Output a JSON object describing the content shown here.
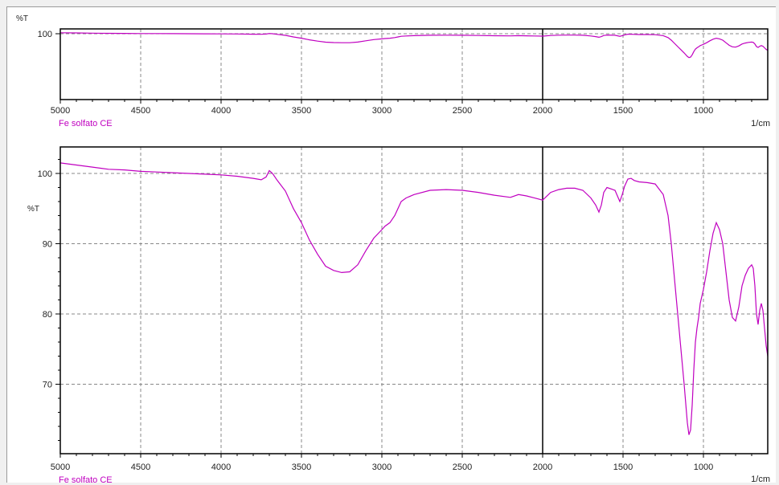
{
  "panels": [
    {
      "id": "top",
      "ylabel": "%T",
      "y_ticks": [
        100
      ],
      "x_ticks": [
        5000,
        4500,
        4000,
        3500,
        3000,
        2500,
        2000,
        1500,
        1000
      ],
      "sample_label": "Fe solfato CE",
      "x_unit": "1/cm"
    },
    {
      "id": "bottom",
      "ylabel": "%T",
      "y_ticks": [
        100,
        90,
        80,
        70
      ],
      "x_ticks": [
        5000,
        4500,
        4000,
        3500,
        3000,
        2500,
        2000,
        1500,
        1000
      ],
      "sample_label": "Fe solfato CE",
      "x_unit": "1/cm"
    }
  ],
  "chart_data": {
    "type": "line",
    "title": "",
    "xlabel": "1/cm",
    "ylabel": "%T",
    "x_reversed": true,
    "xlim": [
      5000,
      600
    ],
    "ylim": [
      61,
      104
    ],
    "grid": true,
    "colors": {
      "spectrum": "#c000c0",
      "marker_line": "#000000",
      "grid": "#888888"
    },
    "marker_x": 2000,
    "series": [
      {
        "name": "Fe solfato CE",
        "x": [
          5000,
          4900,
          4800,
          4700,
          4600,
          4500,
          4400,
          4300,
          4200,
          4100,
          4000,
          3900,
          3800,
          3750,
          3720,
          3700,
          3680,
          3650,
          3600,
          3550,
          3500,
          3450,
          3400,
          3350,
          3300,
          3250,
          3200,
          3150,
          3100,
          3050,
          3000,
          2980,
          2950,
          2920,
          2900,
          2880,
          2850,
          2800,
          2700,
          2600,
          2500,
          2400,
          2300,
          2200,
          2150,
          2100,
          2050,
          2000,
          1950,
          1900,
          1850,
          1800,
          1750,
          1700,
          1670,
          1650,
          1635,
          1620,
          1600,
          1550,
          1520,
          1505,
          1490,
          1470,
          1450,
          1430,
          1400,
          1350,
          1300,
          1250,
          1220,
          1200,
          1180,
          1160,
          1140,
          1120,
          1100,
          1090,
          1080,
          1070,
          1060,
          1050,
          1040,
          1030,
          1020,
          1010,
          1000,
          980,
          960,
          940,
          920,
          900,
          880,
          860,
          840,
          820,
          800,
          780,
          760,
          740,
          720,
          700,
          690,
          680,
          670,
          660,
          650,
          640,
          630,
          620,
          610,
          600
        ],
        "y": [
          101.5,
          101.2,
          100.9,
          100.6,
          100.5,
          100.3,
          100.2,
          100.1,
          100.0,
          99.9,
          99.8,
          99.6,
          99.3,
          99.1,
          99.5,
          100.4,
          100.0,
          99.0,
          97.5,
          95.0,
          93.0,
          90.5,
          88.5,
          86.8,
          86.2,
          85.9,
          86.0,
          87.0,
          89.0,
          90.8,
          92.0,
          92.5,
          93.0,
          94.0,
          95.0,
          96.0,
          96.5,
          97.0,
          97.6,
          97.7,
          97.6,
          97.3,
          96.9,
          96.6,
          97.0,
          96.8,
          96.5,
          96.2,
          97.3,
          97.7,
          97.9,
          97.9,
          97.6,
          96.5,
          95.5,
          94.5,
          95.5,
          97.3,
          98.0,
          97.6,
          96.0,
          97.0,
          98.2,
          99.2,
          99.3,
          99.0,
          98.8,
          98.7,
          98.5,
          97.0,
          94.0,
          90.0,
          85.0,
          80.0,
          75.0,
          70.0,
          64.5,
          62.8,
          63.5,
          67.0,
          72.0,
          76.0,
          78.0,
          79.5,
          81.5,
          82.5,
          83.5,
          86.0,
          89.0,
          91.5,
          93.0,
          92.0,
          90.0,
          86.0,
          82.0,
          79.5,
          79.0,
          81.0,
          84.0,
          85.5,
          86.5,
          87.0,
          86.5,
          84.0,
          80.0,
          78.5,
          80.5,
          81.5,
          80.5,
          78.0,
          75.5,
          74.0
        ]
      }
    ]
  }
}
